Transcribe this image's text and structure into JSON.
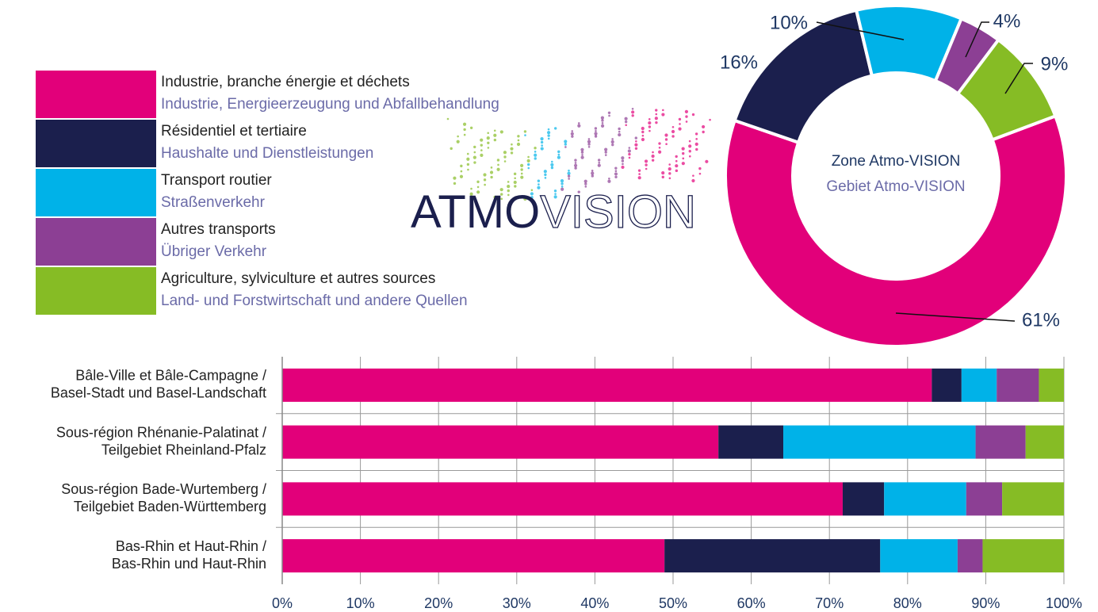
{
  "chart_data": [
    {
      "type": "pie",
      "values": [
        61,
        16,
        10,
        4,
        9
      ],
      "value_labels": [
        "61%",
        "16%",
        "10%",
        "4%",
        "9%"
      ],
      "colors": [
        "#e2007a",
        "#1b1f4d",
        "#00b2e8",
        "#8c3f94",
        "#86bc25"
      ],
      "center_text": [
        "Zone Atmo-VISION",
        "Gebiet Atmo-VISION"
      ]
    },
    {
      "type": "stacked_bar",
      "logo": {
        "bold": "ATMO",
        "light": "VISION"
      },
      "categories": [
        [
          "Bâle-Ville et Bâle-Campagne /",
          "Basel-Stadt und Basel-Landschaft"
        ],
        [
          "Sous-région Rhénanie-Palatinat /",
          "Teilgebiet Rheinland-Pfalz"
        ],
        [
          "Sous-région Bade-Wurtemberg /",
          "Teilgebiet Baden-Württemberg"
        ],
        [
          "Bas-Rhin et Haut-Rhin /",
          "Bas-Rhin und Haut-Rhin"
        ]
      ],
      "series": [
        {
          "name": "Industrie, branche énergie et déchets",
          "name_de": "Industrie, Energieerzeugung und Abfallbehandlung",
          "color": "#e2007a",
          "values": [
            83.1,
            55.8,
            71.7,
            48.9
          ]
        },
        {
          "name": "Résidentiel et tertiaire",
          "name_de": "Haushalte und Dienstleistungen",
          "color": "#1b1f4d",
          "values": [
            3.8,
            8.3,
            5.3,
            27.6
          ]
        },
        {
          "name": "Transport routier",
          "name_de": "Straßenverkehr",
          "color": "#00b2e8",
          "values": [
            4.5,
            24.6,
            10.5,
            9.9
          ]
        },
        {
          "name": "Autres transports",
          "name_de": "Übriger Verkehr",
          "color": "#8c3f94",
          "values": [
            5.4,
            6.4,
            4.6,
            3.2
          ]
        },
        {
          "name": "Agriculture, sylviculture et autres sources",
          "name_de": "Land- und Forstwirtschaft und andere Quellen",
          "color": "#86bc25",
          "values": [
            3.2,
            4.9,
            7.9,
            10.4
          ]
        }
      ],
      "xlim": [
        0,
        100
      ],
      "xticks": [
        {
          "value": 0,
          "label": "0%"
        },
        {
          "value": 10,
          "label": "10%"
        },
        {
          "value": 20,
          "label": "20%"
        },
        {
          "value": 30,
          "label": "30%"
        },
        {
          "value": 40,
          "label": "40%"
        },
        {
          "value": 50,
          "label": "50%"
        },
        {
          "value": 60,
          "label": "60%"
        },
        {
          "value": 70,
          "label": "70%"
        },
        {
          "value": 80,
          "label": "80%"
        },
        {
          "value": 90,
          "label": "90%"
        },
        {
          "value": 100,
          "label": "100%"
        }
      ],
      "grid": true
    }
  ]
}
